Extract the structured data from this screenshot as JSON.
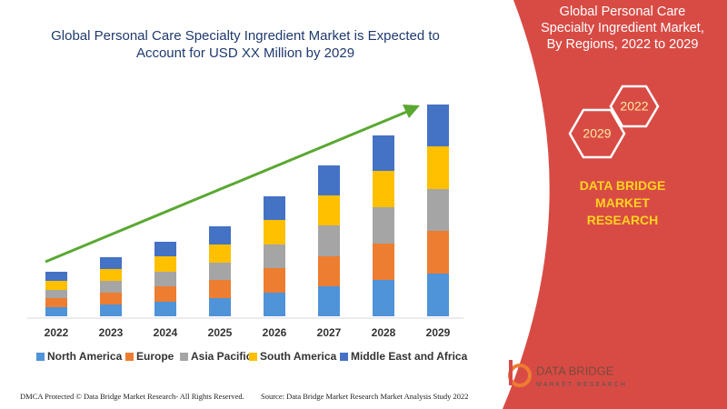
{
  "chart_data": {
    "type": "bar",
    "stacked": true,
    "title": "Global Personal Care Specialty Ingredient Market is Expected to Account for USD XX Million by 2029",
    "categories": [
      "2022",
      "2023",
      "2024",
      "2025",
      "2026",
      "2027",
      "2028",
      "2029"
    ],
    "series": [
      {
        "name": "North America",
        "color": "#4f93d8",
        "values": [
          10,
          13,
          16,
          20,
          26,
          33,
          40,
          47
        ]
      },
      {
        "name": "Europe",
        "color": "#ed7d31",
        "values": [
          10,
          13,
          17,
          20,
          27,
          33,
          40,
          47
        ]
      },
      {
        "name": "Asia Pacific",
        "color": "#a5a5a5",
        "values": [
          9,
          13,
          16,
          19,
          26,
          34,
          40,
          46
        ]
      },
      {
        "name": "South America",
        "color": "#ffc000",
        "values": [
          10,
          13,
          17,
          20,
          27,
          33,
          40,
          47
        ]
      },
      {
        "name": "Middle East and Africa",
        "color": "#4472c4",
        "values": [
          10,
          13,
          16,
          20,
          26,
          33,
          39,
          46
        ]
      }
    ]
  },
  "panel": {
    "title": "Global Personal Care Specialty Ingredient Market, By Regions, 2022 to 2029",
    "hex_labels": [
      "2029",
      "2022"
    ],
    "brand": "DATA BRIDGE MARKET RESEARCH"
  },
  "footer": {
    "left": "DMCA Protected © Data Bridge Market Research- All Rights Reserved.",
    "right": "Source: Data Bridge Market Research Market Analysis Study 2022"
  },
  "logo": {
    "name": "DATA BRIDGE",
    "tagline": "MARKET RESEARCH"
  }
}
